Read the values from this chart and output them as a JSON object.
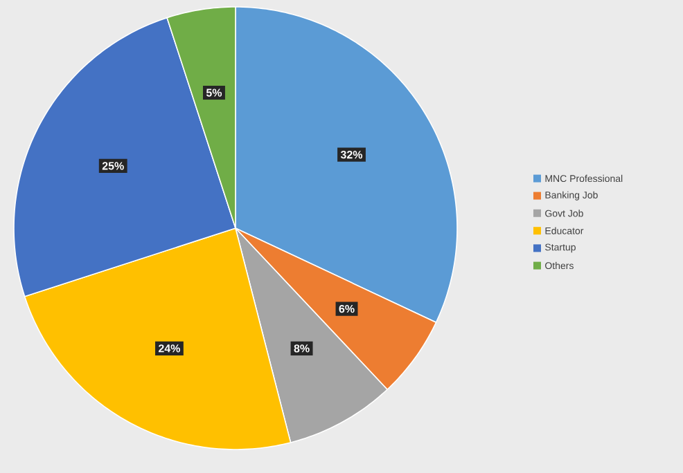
{
  "chart_data": {
    "type": "pie",
    "categories": [
      "MNC Professional",
      "Banking Job",
      "Govt Job",
      "Educator",
      "Startup",
      "Others"
    ],
    "values": [
      32,
      6,
      8,
      24,
      25,
      5
    ],
    "colors": [
      "#5b9bd5",
      "#ed7d31",
      "#a5a5a5",
      "#ffc000",
      "#4472c4",
      "#70ad47"
    ],
    "value_labels": [
      "32%",
      "6%",
      "8%",
      "24%",
      "25%",
      "5%"
    ],
    "legend": "right"
  }
}
